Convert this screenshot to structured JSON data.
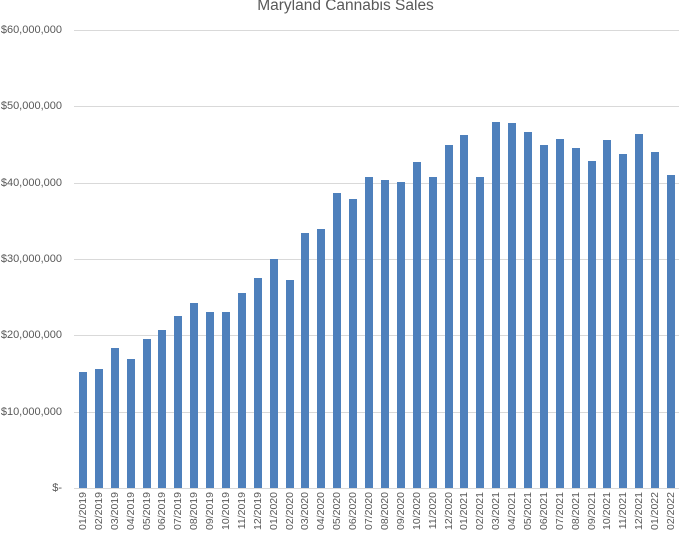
{
  "chart": {
    "title": "Maryland Cannabis Sales",
    "colors": {
      "bar": "#4e80bc",
      "gridline": "#d9d9d9",
      "axis_text": "#595959",
      "title_text": "#595959",
      "background": "#ffffff"
    }
  },
  "chart_data": {
    "type": "bar",
    "title": "Maryland Cannabis Sales",
    "xlabel": "",
    "ylabel": "",
    "ylim": [
      0,
      60000000
    ],
    "ytick_interval": 10000000,
    "ytick_labels": [
      "$-",
      "$10,000,000",
      "$20,000,000",
      "$30,000,000",
      "$40,000,000",
      "$50,000,000",
      "$60,000,000"
    ],
    "grid": true,
    "legend": false,
    "categories": [
      "01/2019",
      "02/2019",
      "03/2019",
      "04/2019",
      "05/2019",
      "06/2019",
      "07/2019",
      "08/2019",
      "09/2019",
      "10/2019",
      "11/2019",
      "12/2019",
      "01/2020",
      "02/2020",
      "03/2020",
      "04/2020",
      "05/2020",
      "06/2020",
      "07/2020",
      "08/2020",
      "09/2020",
      "10/2020",
      "11/2020",
      "12/2020",
      "01/2021",
      "02/2021",
      "03/2021",
      "04/2021",
      "05/2021",
      "06/2021",
      "07/2021",
      "08/2021",
      "09/2021",
      "10/2021",
      "11/2021",
      "12/2021",
      "01/2022",
      "02/2022"
    ],
    "values": [
      15200000,
      15600000,
      18400000,
      16900000,
      19500000,
      20700000,
      22500000,
      24200000,
      23100000,
      23100000,
      25500000,
      27500000,
      30000000,
      27200000,
      33400000,
      33900000,
      38600000,
      37900000,
      40700000,
      40400000,
      40100000,
      42700000,
      40700000,
      44900000,
      46300000,
      40800000,
      47900000,
      47800000,
      46700000,
      45000000,
      45700000,
      44500000,
      42800000,
      45600000,
      43800000,
      46400000,
      44000000,
      41000000
    ]
  }
}
